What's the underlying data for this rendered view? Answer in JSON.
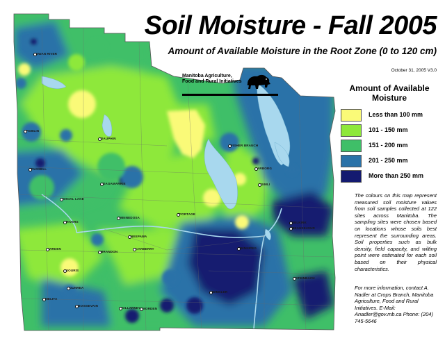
{
  "title": "Soil Moisture - Fall 2005",
  "subtitle": "Amount of Available Moisture in the Root Zone (0 to 120 cm)",
  "date": "October 31, 2005   V3.0",
  "agency": "Manitoba Agriculture, Food and Rural Initiatives",
  "logo_icon": "bison-icon",
  "legend": {
    "title": "Amount of Available Moisture",
    "items": [
      {
        "label": "Less than 100 mm",
        "color": "#fafa78"
      },
      {
        "label": "101 - 150 mm",
        "color": "#8ee83a"
      },
      {
        "label": "151 - 200 mm",
        "color": "#3fbf68"
      },
      {
        "label": "201 - 250 mm",
        "color": "#2a72a8"
      },
      {
        "label": "More than 250 mm",
        "color": "#141a70"
      }
    ]
  },
  "description": "The colours on this map represent measured soil moisture values from soil samples collected at 122 sites across Manitoba. The sampling sites were chosen based on locations whose soils best represent the surrounding areas. Soil properties such as bulk density, field capacity, and wilting point were estimated for each soil based on their physical characteristics.",
  "contact": "For more information, contact A. Nadler at Crops Branch, Manitoba Agriculture, Food and Rural Initiatives. E-Mail: Anadler@gov.mb.ca Phone: (204) 745-5646",
  "places": [
    "SWAN RIVER",
    "ROBLIN",
    "DAUPHIN",
    "RUSSELL",
    "SHOAL LAKE",
    "DAGAMARRIE",
    "MINNEDOSA",
    "NEEPAWA",
    "RIVERS",
    "VIRDEN",
    "SOURIS",
    "BRANDON",
    "CARBERRY",
    "PORTAGE",
    "MELITA",
    "BOISSEVAIN",
    "KILLARNEY",
    "MORDEN",
    "WINKLER",
    "STEINBACH",
    "SELKIRK",
    "BEAUSEJOUR",
    "GIMLI",
    "ARBORG",
    "FISHER BRANCH",
    "DUNREA",
    "WINNIPEG"
  ],
  "colors": {
    "water": "#a8d8ee",
    "road": "#6a6a6a",
    "boundary": "#888888"
  }
}
